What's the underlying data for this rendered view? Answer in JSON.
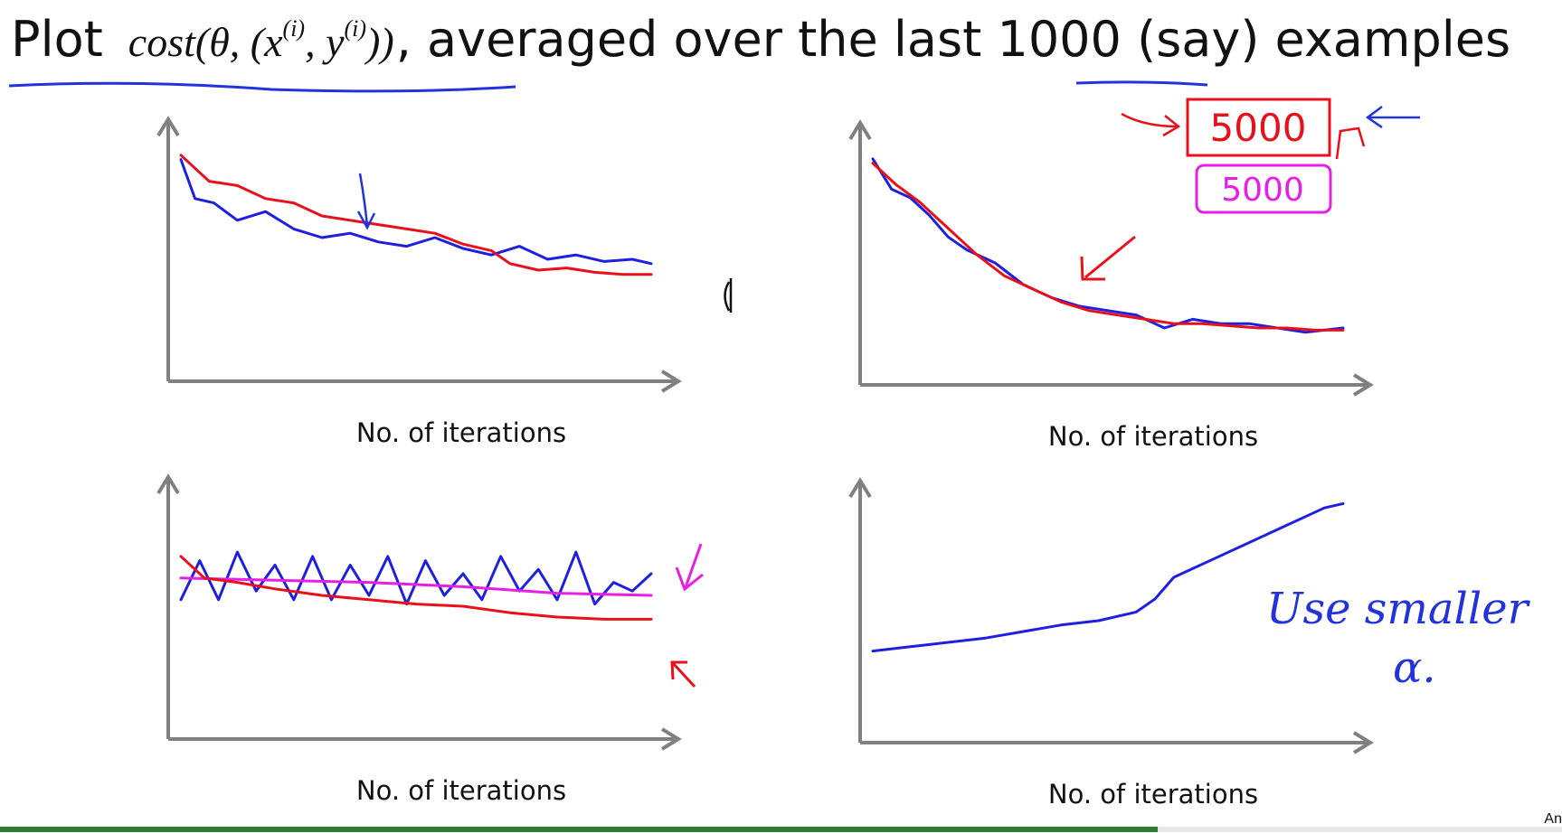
{
  "slide": {
    "title_prefix": "Plot",
    "title_math": "cost(θ, (x",
    "title_math_sup1": "(i)",
    "title_math_mid": ", y",
    "title_math_sup2": "(i)",
    "title_math_end": "))",
    "title_suffix": ", averaged over the last ",
    "title_number": "1000",
    "title_end": " (say) examples",
    "author_fragment": "An"
  },
  "annotations": {
    "box_red": "5000",
    "box_magenta": "5000",
    "note_line1": "Use smaller",
    "note_line2": "α."
  },
  "colors": {
    "blue": "#1f1fe0",
    "red": "#e8101a",
    "magenta": "#e61ee6",
    "axis": "#808080",
    "ink_blue": "#2233dd"
  },
  "chart_data": [
    {
      "type": "line",
      "xlabel": "No. of iterations",
      "xlim": [
        0,
        100
      ],
      "ylim": [
        0,
        100
      ],
      "series": [
        {
          "color": "blue",
          "x": [
            0,
            3,
            7,
            12,
            18,
            24,
            30,
            36,
            42,
            48,
            54,
            60,
            66,
            72,
            78,
            84,
            90,
            96,
            100
          ],
          "y": [
            96,
            78,
            76,
            68,
            72,
            64,
            60,
            62,
            58,
            56,
            60,
            55,
            52,
            56,
            50,
            52,
            49,
            50,
            48
          ]
        },
        {
          "color": "red",
          "x": [
            0,
            6,
            12,
            18,
            24,
            30,
            36,
            42,
            48,
            54,
            60,
            66,
            70,
            76,
            82,
            88,
            94,
            100
          ],
          "y": [
            98,
            86,
            84,
            78,
            76,
            70,
            68,
            66,
            64,
            62,
            57,
            54,
            48,
            45,
            46,
            44,
            43,
            43
          ]
        }
      ]
    },
    {
      "type": "line",
      "xlabel": "No. of iterations",
      "xlim": [
        0,
        100
      ],
      "ylim": [
        0,
        100
      ],
      "series": [
        {
          "color": "blue",
          "x": [
            0,
            4,
            8,
            12,
            16,
            20,
            26,
            32,
            38,
            44,
            50,
            56,
            62,
            68,
            74,
            80,
            86,
            92,
            100
          ],
          "y": [
            98,
            84,
            80,
            72,
            62,
            56,
            50,
            40,
            34,
            30,
            28,
            26,
            20,
            24,
            22,
            22,
            20,
            18,
            20
          ]
        },
        {
          "color": "red",
          "x": [
            0,
            5,
            10,
            16,
            22,
            28,
            34,
            40,
            46,
            52,
            58,
            64,
            70,
            76,
            82,
            88,
            94,
            100
          ],
          "y": [
            96,
            86,
            78,
            66,
            54,
            44,
            38,
            32,
            28,
            26,
            24,
            22,
            22,
            21,
            20,
            20,
            19,
            19
          ]
        }
      ]
    },
    {
      "type": "line",
      "xlabel": "No. of iterations",
      "xlim": [
        0,
        100
      ],
      "ylim": [
        0,
        100
      ],
      "series": [
        {
          "color": "blue",
          "x": [
            0,
            4,
            8,
            12,
            16,
            20,
            24,
            28,
            32,
            36,
            40,
            44,
            48,
            52,
            56,
            60,
            64,
            68,
            72,
            76,
            80,
            84,
            88,
            92,
            96,
            100
          ],
          "y": [
            58,
            76,
            58,
            80,
            62,
            74,
            58,
            78,
            58,
            74,
            60,
            78,
            56,
            76,
            60,
            70,
            58,
            78,
            62,
            72,
            58,
            80,
            56,
            66,
            62,
            70
          ]
        },
        {
          "color": "magenta",
          "x": [
            0,
            20,
            40,
            60,
            80,
            100
          ],
          "y": [
            68,
            67,
            66,
            64,
            61,
            60
          ]
        },
        {
          "color": "red",
          "x": [
            0,
            5,
            12,
            20,
            30,
            40,
            50,
            60,
            70,
            80,
            90,
            100
          ],
          "y": [
            78,
            68,
            66,
            63,
            60,
            58,
            56,
            55,
            52,
            50,
            49,
            49
          ]
        }
      ]
    },
    {
      "type": "line",
      "xlabel": "No. of iterations",
      "xlim": [
        0,
        100
      ],
      "ylim": [
        0,
        100
      ],
      "series": [
        {
          "color": "blue",
          "x": [
            0,
            8,
            16,
            24,
            32,
            40,
            48,
            56,
            60,
            64,
            68,
            72,
            76,
            80,
            84,
            88,
            92,
            96,
            100
          ],
          "y": [
            36,
            38,
            40,
            42,
            45,
            48,
            50,
            54,
            60,
            70,
            74,
            78,
            82,
            86,
            90,
            94,
            98,
            102,
            104
          ]
        }
      ]
    }
  ]
}
